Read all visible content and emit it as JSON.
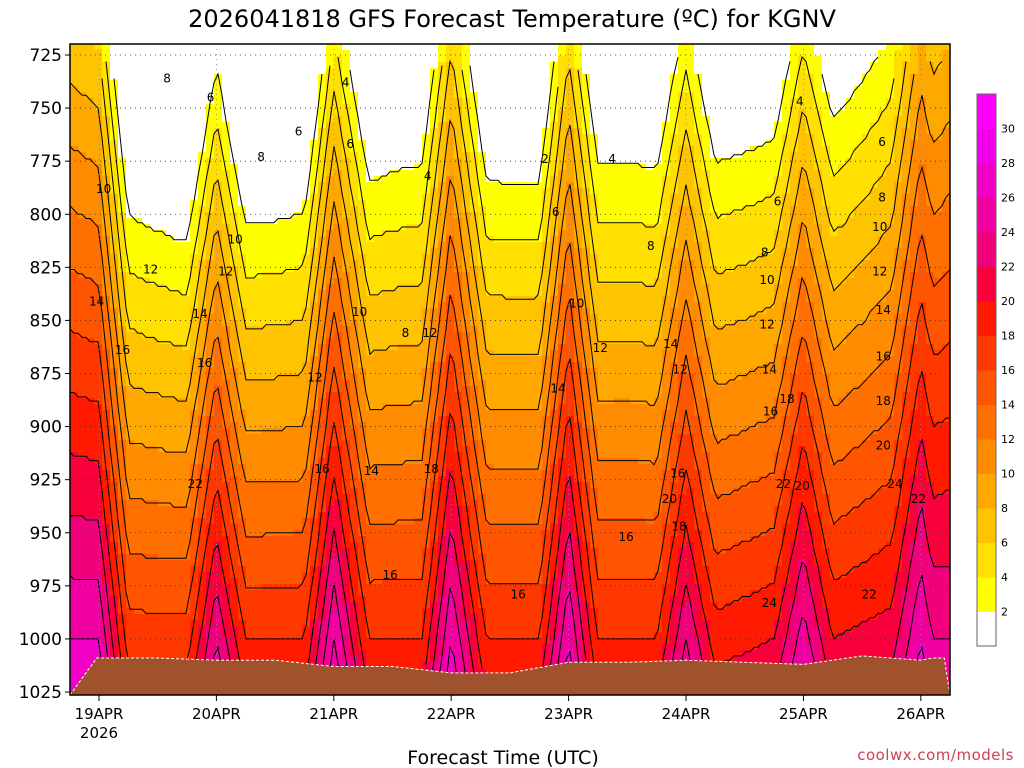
{
  "chart_data": {
    "type": "heatmap",
    "title": "2026041818 GFS Forecast Temperature (ºC) for KGNV",
    "xlabel": "Forecast Time (UTC)",
    "ylabel": "",
    "x_ticks": [
      "19APR",
      "20APR",
      "21APR",
      "22APR",
      "23APR",
      "24APR",
      "25APR",
      "26APR"
    ],
    "x_tick_year": "2026",
    "y_ticks": [
      "725",
      "750",
      "775",
      "800",
      "825",
      "850",
      "875",
      "900",
      "925",
      "950",
      "975",
      "1000",
      "1025"
    ],
    "ylim": [
      1025,
      725
    ],
    "xlim_days": [
      -0.02,
      7.1
    ],
    "colorbar": {
      "levels": [
        "2",
        "4",
        "6",
        "8",
        "10",
        "12",
        "14",
        "16",
        "18",
        "20",
        "22",
        "24",
        "26",
        "28",
        "30"
      ],
      "colors": [
        "#ffffff",
        "#ffff00",
        "#ffe000",
        "#ffc400",
        "#ffa800",
        "#ff8c00",
        "#ff7000",
        "#ff5400",
        "#ff3800",
        "#ff1a00",
        "#f7003c",
        "#f0007a",
        "#f000a0",
        "#f000c4",
        "#f000e8",
        "#ff00ff"
      ]
    },
    "contour_labels": [
      {
        "text": "8",
        "x": 0.58,
        "y": 736
      },
      {
        "text": "6",
        "x": 0.95,
        "y": 745
      },
      {
        "text": "4",
        "x": 2.1,
        "y": 738
      },
      {
        "text": "6",
        "x": 1.7,
        "y": 761
      },
      {
        "text": "6",
        "x": 2.14,
        "y": 767
      },
      {
        "text": "8",
        "x": 1.38,
        "y": 773
      },
      {
        "text": "4",
        "x": 2.8,
        "y": 782
      },
      {
        "text": "2",
        "x": 3.8,
        "y": 774
      },
      {
        "text": "4",
        "x": 4.37,
        "y": 774
      },
      {
        "text": "4",
        "x": 5.97,
        "y": 747
      },
      {
        "text": "6",
        "x": 6.67,
        "y": 766
      },
      {
        "text": "10",
        "x": 0.04,
        "y": 788
      },
      {
        "text": "6",
        "x": 3.89,
        "y": 799
      },
      {
        "text": "6",
        "x": 5.78,
        "y": 794
      },
      {
        "text": "8",
        "x": 6.67,
        "y": 792
      },
      {
        "text": "8",
        "x": 4.7,
        "y": 815
      },
      {
        "text": "8",
        "x": 5.67,
        "y": 818
      },
      {
        "text": "10",
        "x": 1.16,
        "y": 812
      },
      {
        "text": "12",
        "x": 0.44,
        "y": 826
      },
      {
        "text": "12",
        "x": 1.08,
        "y": 827
      },
      {
        "text": "10",
        "x": 6.65,
        "y": 806
      },
      {
        "text": "10",
        "x": 5.69,
        "y": 831
      },
      {
        "text": "12",
        "x": 6.65,
        "y": 827
      },
      {
        "text": "14",
        "x": -0.02,
        "y": 841
      },
      {
        "text": "14",
        "x": 0.86,
        "y": 847
      },
      {
        "text": "10",
        "x": 2.22,
        "y": 846
      },
      {
        "text": "10",
        "x": 4.07,
        "y": 842
      },
      {
        "text": "8",
        "x": 2.61,
        "y": 856
      },
      {
        "text": "12",
        "x": 2.82,
        "y": 856
      },
      {
        "text": "12",
        "x": 4.27,
        "y": 863
      },
      {
        "text": "12",
        "x": 5.69,
        "y": 852
      },
      {
        "text": "14",
        "x": 6.68,
        "y": 845
      },
      {
        "text": "16",
        "x": 0.2,
        "y": 864
      },
      {
        "text": "16",
        "x": 0.9,
        "y": 870
      },
      {
        "text": "14",
        "x": 4.87,
        "y": 861
      },
      {
        "text": "12",
        "x": 1.84,
        "y": 877
      },
      {
        "text": "12",
        "x": 4.95,
        "y": 873
      },
      {
        "text": "14",
        "x": 5.71,
        "y": 873
      },
      {
        "text": "16",
        "x": 6.68,
        "y": 867
      },
      {
        "text": "14",
        "x": 3.91,
        "y": 882
      },
      {
        "text": "18",
        "x": 5.86,
        "y": 887
      },
      {
        "text": "16",
        "x": 5.72,
        "y": 893
      },
      {
        "text": "18",
        "x": 6.68,
        "y": 888
      },
      {
        "text": "20",
        "x": 6.68,
        "y": 909
      },
      {
        "text": "22",
        "x": 0.82,
        "y": 927
      },
      {
        "text": "16",
        "x": 1.9,
        "y": 920
      },
      {
        "text": "14",
        "x": 2.32,
        "y": 921
      },
      {
        "text": "18",
        "x": 2.83,
        "y": 920
      },
      {
        "text": "16",
        "x": 4.93,
        "y": 922
      },
      {
        "text": "22",
        "x": 5.83,
        "y": 927
      },
      {
        "text": "20",
        "x": 5.99,
        "y": 928
      },
      {
        "text": "24",
        "x": 6.78,
        "y": 927
      },
      {
        "text": "20",
        "x": 4.86,
        "y": 934
      },
      {
        "text": "22",
        "x": 6.98,
        "y": 934
      },
      {
        "text": "18",
        "x": 4.94,
        "y": 947
      },
      {
        "text": "16",
        "x": 4.49,
        "y": 952
      },
      {
        "text": "16",
        "x": 2.48,
        "y": 970
      },
      {
        "text": "16",
        "x": 3.57,
        "y": 979
      },
      {
        "text": "22",
        "x": 6.56,
        "y": 979
      },
      {
        "text": "24",
        "x": 5.71,
        "y": 983
      }
    ],
    "terrain_surface_pressure": [
      1009,
      1009,
      1010,
      1010,
      1013,
      1013,
      1016,
      1016,
      1011,
      1011,
      1010,
      1011,
      1012,
      1008,
      1010,
      1009,
      1009
    ],
    "terrain_times_days": [
      -0.02,
      0.5,
      1.0,
      1.5,
      2.0,
      2.5,
      3.0,
      3.5,
      4.0,
      4.5,
      5.0,
      5.5,
      6.0,
      6.5,
      7.0,
      7.1,
      7.2
    ],
    "temperature_profile_at_1000hPa_by_day_fraction": [
      {
        "x": 0.0,
        "t": 26
      },
      {
        "x": 0.25,
        "t": 17
      },
      {
        "x": 0.75,
        "t": 17
      },
      {
        "x": 1.0,
        "t": 24
      },
      {
        "x": 1.25,
        "t": 18
      },
      {
        "x": 1.75,
        "t": 18
      },
      {
        "x": 2.0,
        "t": 26
      },
      {
        "x": 2.3,
        "t": 18
      },
      {
        "x": 2.75,
        "t": 18
      },
      {
        "x": 3.0,
        "t": 26
      },
      {
        "x": 3.3,
        "t": 18
      },
      {
        "x": 3.75,
        "t": 18
      },
      {
        "x": 4.0,
        "t": 26
      },
      {
        "x": 4.25,
        "t": 18
      },
      {
        "x": 4.75,
        "t": 18
      },
      {
        "x": 5.0,
        "t": 24
      },
      {
        "x": 5.25,
        "t": 19
      },
      {
        "x": 5.75,
        "t": 20
      },
      {
        "x": 6.0,
        "t": 25
      },
      {
        "x": 6.25,
        "t": 20
      },
      {
        "x": 6.75,
        "t": 21
      },
      {
        "x": 7.0,
        "t": 26
      },
      {
        "x": 7.1,
        "t": 24
      }
    ]
  },
  "credit": "coolwx.com/models"
}
